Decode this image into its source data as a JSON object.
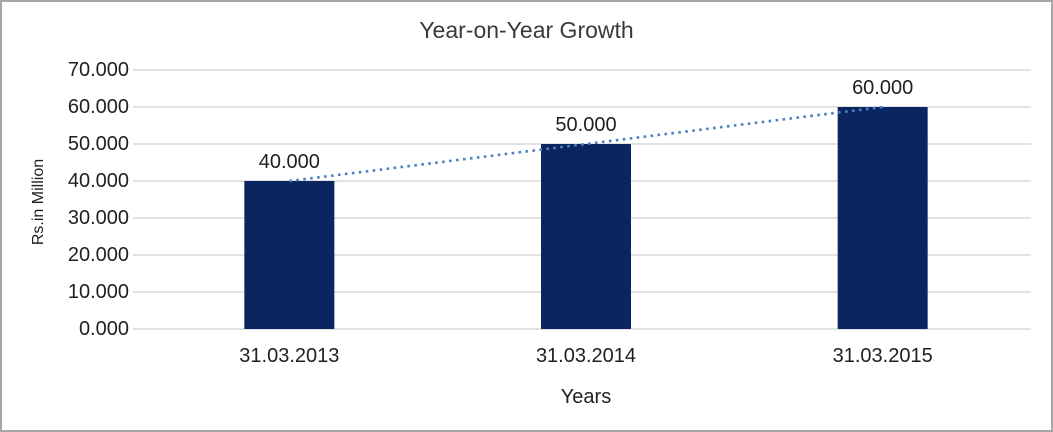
{
  "window": {
    "background": "#FFFFFF",
    "border_color": "#A6A6A6"
  },
  "chart_data": {
    "type": "bar",
    "title": "Year-on-Year Growth",
    "xlabel": "Years",
    "ylabel": "Rs.in Million",
    "categories": [
      "31.03.2013",
      "31.03.2014",
      "31.03.2015"
    ],
    "values": [
      40,
      50,
      60
    ],
    "value_labels": [
      "40.000",
      "50.000",
      "60.000"
    ],
    "ylim": [
      0,
      70
    ],
    "y_ticks": [
      0,
      10,
      20,
      30,
      40,
      50,
      60,
      70
    ],
    "y_tick_labels": [
      "0.000",
      "10.000",
      "20.000",
      "30.000",
      "40.000",
      "50.000",
      "60.000",
      "70.000"
    ],
    "grid": true,
    "legend": false,
    "trendline": {
      "style": "dotted",
      "from_category_index": 0,
      "from_value": 40,
      "to_category_index": 2,
      "to_value": 60
    },
    "colors": {
      "bar": "#0A2560",
      "trendline": "#4A82C4",
      "gridline": "#D9D9D9",
      "text": "#1F1F1F",
      "title_text": "#3A3A3A"
    }
  }
}
